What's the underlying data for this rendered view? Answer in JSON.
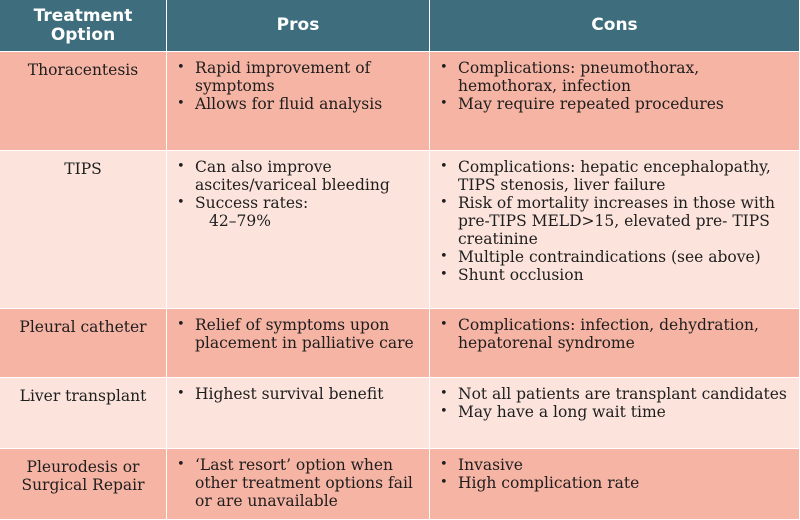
{
  "headers": [
    "Treatment Option",
    "Pros",
    "Cons"
  ],
  "rows": [
    {
      "option": "Thoracentesis",
      "pros": [
        "Rapid improvement of symptoms",
        "Allows for fluid analysis"
      ],
      "pros_extra": "",
      "cons": [
        "Complications: pneumothorax, hemothorax, infection",
        "May require repeated procedures"
      ]
    },
    {
      "option": "TIPS",
      "pros": [
        "Can also improve ascites/variceal bleeding",
        "Success rates:"
      ],
      "pros_extra": "42–79%",
      "cons": [
        "Complications:  hepatic encephalopathy, TIPS stenosis, liver failure",
        "Risk of mortality increases in those with pre-TIPS MELD>15, elevated pre- TIPS creatinine",
        "Multiple contraindications (see above)",
        "Shunt occlusion"
      ]
    },
    {
      "option": "Pleural catheter",
      "pros": [
        "Relief of symptoms upon placement in palliative care"
      ],
      "pros_extra": "",
      "cons": [
        "Complications:  infection, dehydration, hepatorenal syndrome"
      ]
    },
    {
      "option": "Liver transplant",
      "pros": [
        "Highest survival benefit"
      ],
      "pros_extra": "",
      "cons": [
        "Not all patients are transplant candidates",
        "May have a long wait time"
      ]
    },
    {
      "option": "Pleurodesis or Surgical Repair",
      "pros": [
        "‘Last resort’ option when other treatment options fail or are unavailable"
      ],
      "pros_extra": "",
      "cons": [
        "Invasive",
        "High complication rate"
      ]
    }
  ],
  "colors": {
    "header": "#3e6e7e",
    "row_dark": "#f6b4a4",
    "row_light": "#fce4dd"
  }
}
